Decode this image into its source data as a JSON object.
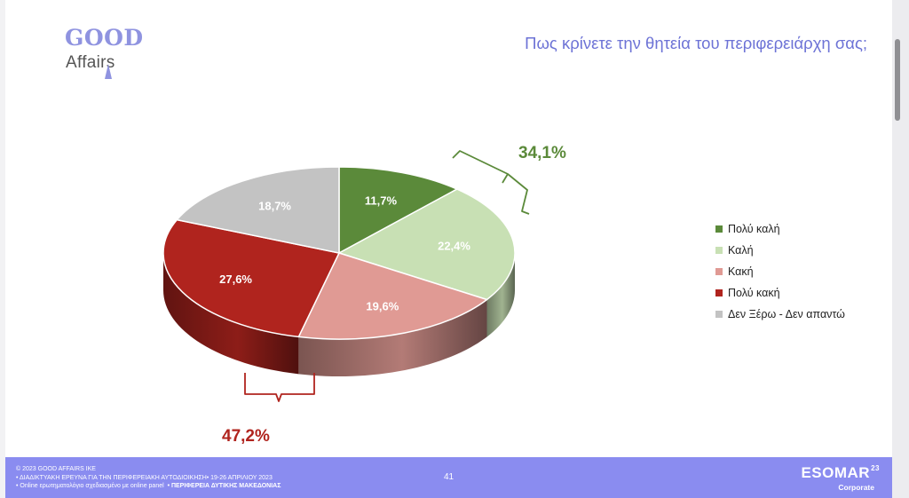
{
  "header": {
    "logo_top": "GOOD",
    "logo_bottom": "Affairs",
    "question": "Πως κρίνετε την θητεία του περιφερειάρχη σας;"
  },
  "chart_data": {
    "type": "pie",
    "title": "Πως κρίνετε την θητεία του περιφερειάρχη σας;",
    "categories": [
      "Πολύ καλή",
      "Καλή",
      "Κακή",
      "Πολύ κακή",
      "Δεν Ξέρω - Δεν απαντώ"
    ],
    "values": [
      11.7,
      22.4,
      19.6,
      27.6,
      18.7
    ],
    "value_labels": [
      "11,7%",
      "22,4%",
      "19,6%",
      "27,6%",
      "18,7%"
    ],
    "colors": [
      "#5b8a3a",
      "#c8e0b4",
      "#e09a94",
      "#b0241e",
      "#c3c3c3"
    ],
    "legend": "right",
    "three_d": true,
    "annotations": [
      {
        "label": "34,1%",
        "color": "#5b8a3a",
        "groups": [
          "Πολύ καλή",
          "Καλή"
        ]
      },
      {
        "label": "47,2%",
        "color": "#b0241e",
        "groups": [
          "Κακή",
          "Πολύ κακή"
        ]
      }
    ]
  },
  "footer": {
    "line1": "© 2023 GOOD AFFAIRS IKE",
    "line2": "• ΔΙΑΔΙΚΤΥΑΚΗ ΕΡΕΥΝΑ  ΓΙΑ ΤΗΝ ΠΕΡΙΦΕΡΕΙΑΚΗ ΑΥΤΟΔΙΟΙΚΗΣΗ• 19-26 ΑΠΡΙΛΙΟΥ 2023",
    "line3_a": "• Online ερωτηματολόγιο σχεδιασμένο με online panel",
    "line3_b": "• ΠΕΡΙΦΕΡΕΙΑ ΔΥΤΙΚΗΣ ΜΑΚΕΔΟΝΙΑΣ",
    "page_number": "41",
    "brand": "ESOMAR",
    "brand_sup": "23",
    "brand_sub": "Corporate"
  }
}
